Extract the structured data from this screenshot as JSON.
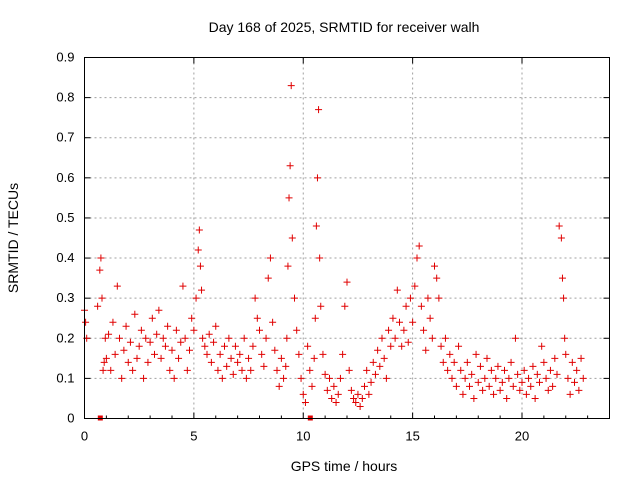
{
  "chart_data": {
    "type": "scatter",
    "title": "Day 168 of 2025, SRMTID for receiver walh",
    "xlabel": "GPS time / hours",
    "ylabel": "SRMTID / TECUs",
    "xlim": [
      0,
      24
    ],
    "ylim": [
      0,
      0.9
    ],
    "x_ticks": [
      0,
      5,
      10,
      15,
      20
    ],
    "x_tick_labels": [
      "0",
      "5",
      "10",
      "15",
      "20"
    ],
    "y_ticks": [
      0,
      0.1,
      0.2,
      0.3,
      0.4,
      0.5,
      0.6,
      0.7,
      0.8,
      0.9
    ],
    "y_tick_labels": [
      "0",
      "0.1",
      "0.2",
      "0.3",
      "0.4",
      "0.5",
      "0.6",
      "0.7",
      "0.8",
      "0.9"
    ],
    "grid": true,
    "marker": "+",
    "color": "#e00000",
    "series": [
      {
        "name": "SRMTID",
        "x": [
          0.0,
          0.05,
          0.1,
          0.6,
          0.7,
          0.75,
          0.8,
          0.85,
          0.9,
          0.95,
          1.0,
          1.1,
          1.2,
          1.3,
          1.4,
          1.5,
          1.6,
          1.7,
          1.8,
          1.9,
          2.0,
          2.1,
          2.2,
          2.3,
          2.4,
          2.5,
          2.6,
          2.7,
          2.8,
          2.9,
          3.0,
          3.1,
          3.2,
          3.3,
          3.4,
          3.5,
          3.6,
          3.7,
          3.8,
          3.9,
          4.0,
          4.1,
          4.2,
          4.3,
          4.4,
          4.5,
          4.6,
          4.7,
          4.8,
          4.9,
          5.0,
          5.1,
          5.2,
          5.25,
          5.3,
          5.35,
          5.4,
          5.5,
          5.6,
          5.7,
          5.8,
          5.9,
          6.0,
          6.1,
          6.2,
          6.3,
          6.4,
          6.5,
          6.6,
          6.7,
          6.8,
          6.9,
          7.0,
          7.1,
          7.2,
          7.3,
          7.4,
          7.5,
          7.6,
          7.7,
          7.8,
          7.9,
          8.0,
          8.1,
          8.2,
          8.3,
          8.4,
          8.5,
          8.6,
          8.7,
          8.8,
          8.9,
          9.0,
          9.1,
          9.2,
          9.25,
          9.3,
          9.35,
          9.4,
          9.45,
          9.5,
          9.6,
          9.7,
          9.8,
          9.9,
          10.0,
          10.1,
          10.2,
          10.3,
          10.4,
          10.5,
          10.55,
          10.6,
          10.65,
          10.7,
          10.75,
          10.8,
          10.9,
          11.0,
          11.1,
          11.2,
          11.3,
          11.4,
          11.5,
          11.6,
          11.7,
          11.8,
          11.9,
          12.0,
          12.1,
          12.2,
          12.3,
          12.4,
          12.5,
          12.6,
          12.7,
          12.8,
          12.9,
          13.0,
          13.1,
          13.2,
          13.3,
          13.4,
          13.5,
          13.6,
          13.7,
          13.8,
          13.9,
          14.0,
          14.1,
          14.2,
          14.3,
          14.4,
          14.5,
          14.6,
          14.7,
          14.8,
          14.9,
          15.0,
          15.1,
          15.2,
          15.3,
          15.4,
          15.5,
          15.6,
          15.7,
          15.8,
          15.9,
          16.0,
          16.1,
          16.2,
          16.3,
          16.4,
          16.5,
          16.6,
          16.7,
          16.8,
          16.9,
          17.0,
          17.1,
          17.2,
          17.3,
          17.4,
          17.5,
          17.6,
          17.7,
          17.8,
          17.9,
          18.0,
          18.1,
          18.2,
          18.3,
          18.4,
          18.5,
          18.6,
          18.7,
          18.8,
          18.9,
          19.0,
          19.1,
          19.2,
          19.3,
          19.4,
          19.5,
          19.6,
          19.7,
          19.8,
          19.9,
          20.0,
          20.1,
          20.2,
          20.3,
          20.4,
          20.5,
          20.6,
          20.7,
          20.8,
          20.9,
          21.0,
          21.1,
          21.2,
          21.3,
          21.4,
          21.5,
          21.6,
          21.7,
          21.8,
          21.85,
          21.9,
          21.95,
          22.0,
          22.1,
          22.2,
          22.3,
          22.4,
          22.5,
          22.6,
          22.7,
          22.8
        ],
        "y": [
          0.27,
          0.24,
          0.2,
          0.28,
          0.37,
          0.4,
          0.3,
          0.12,
          0.14,
          0.2,
          0.15,
          0.21,
          0.12,
          0.24,
          0.16,
          0.33,
          0.2,
          0.1,
          0.17,
          0.23,
          0.14,
          0.19,
          0.12,
          0.26,
          0.15,
          0.18,
          0.22,
          0.1,
          0.2,
          0.14,
          0.19,
          0.25,
          0.16,
          0.21,
          0.27,
          0.15,
          0.2,
          0.18,
          0.23,
          0.12,
          0.17,
          0.1,
          0.22,
          0.15,
          0.19,
          0.33,
          0.2,
          0.12,
          0.17,
          0.25,
          0.22,
          0.3,
          0.42,
          0.47,
          0.38,
          0.32,
          0.2,
          0.18,
          0.16,
          0.21,
          0.14,
          0.19,
          0.23,
          0.12,
          0.16,
          0.1,
          0.18,
          0.13,
          0.2,
          0.15,
          0.11,
          0.18,
          0.14,
          0.16,
          0.12,
          0.2,
          0.1,
          0.15,
          0.12,
          0.18,
          0.3,
          0.25,
          0.22,
          0.16,
          0.13,
          0.2,
          0.35,
          0.4,
          0.24,
          0.17,
          0.12,
          0.08,
          0.15,
          0.1,
          0.13,
          0.2,
          0.38,
          0.55,
          0.63,
          0.83,
          0.45,
          0.3,
          0.22,
          0.16,
          0.1,
          0.06,
          0.04,
          0.18,
          0.12,
          0.08,
          0.15,
          0.25,
          0.48,
          0.6,
          0.77,
          0.4,
          0.28,
          0.16,
          0.11,
          0.07,
          0.1,
          0.05,
          0.08,
          0.04,
          0.06,
          0.1,
          0.16,
          0.28,
          0.34,
          0.12,
          0.07,
          0.05,
          0.04,
          0.06,
          0.03,
          0.05,
          0.08,
          0.12,
          0.06,
          0.09,
          0.14,
          0.11,
          0.17,
          0.13,
          0.2,
          0.15,
          0.1,
          0.22,
          0.18,
          0.25,
          0.2,
          0.32,
          0.24,
          0.18,
          0.22,
          0.28,
          0.19,
          0.3,
          0.24,
          0.33,
          0.4,
          0.43,
          0.28,
          0.22,
          0.17,
          0.3,
          0.25,
          0.2,
          0.38,
          0.35,
          0.3,
          0.18,
          0.14,
          0.2,
          0.12,
          0.16,
          0.1,
          0.14,
          0.08,
          0.18,
          0.12,
          0.06,
          0.1,
          0.14,
          0.08,
          0.11,
          0.05,
          0.16,
          0.09,
          0.13,
          0.07,
          0.1,
          0.15,
          0.08,
          0.12,
          0.06,
          0.1,
          0.13,
          0.07,
          0.09,
          0.12,
          0.05,
          0.1,
          0.14,
          0.08,
          0.2,
          0.11,
          0.07,
          0.09,
          0.12,
          0.06,
          0.1,
          0.08,
          0.13,
          0.05,
          0.11,
          0.09,
          0.18,
          0.14,
          0.1,
          0.07,
          0.12,
          0.08,
          0.15,
          0.11,
          0.48,
          0.45,
          0.35,
          0.3,
          0.2,
          0.16,
          0.1,
          0.06,
          0.14,
          0.09,
          0.12,
          0.07,
          0.15,
          0.1
        ]
      }
    ],
    "zero_markers_x": [
      0.7,
      10.3
    ]
  }
}
